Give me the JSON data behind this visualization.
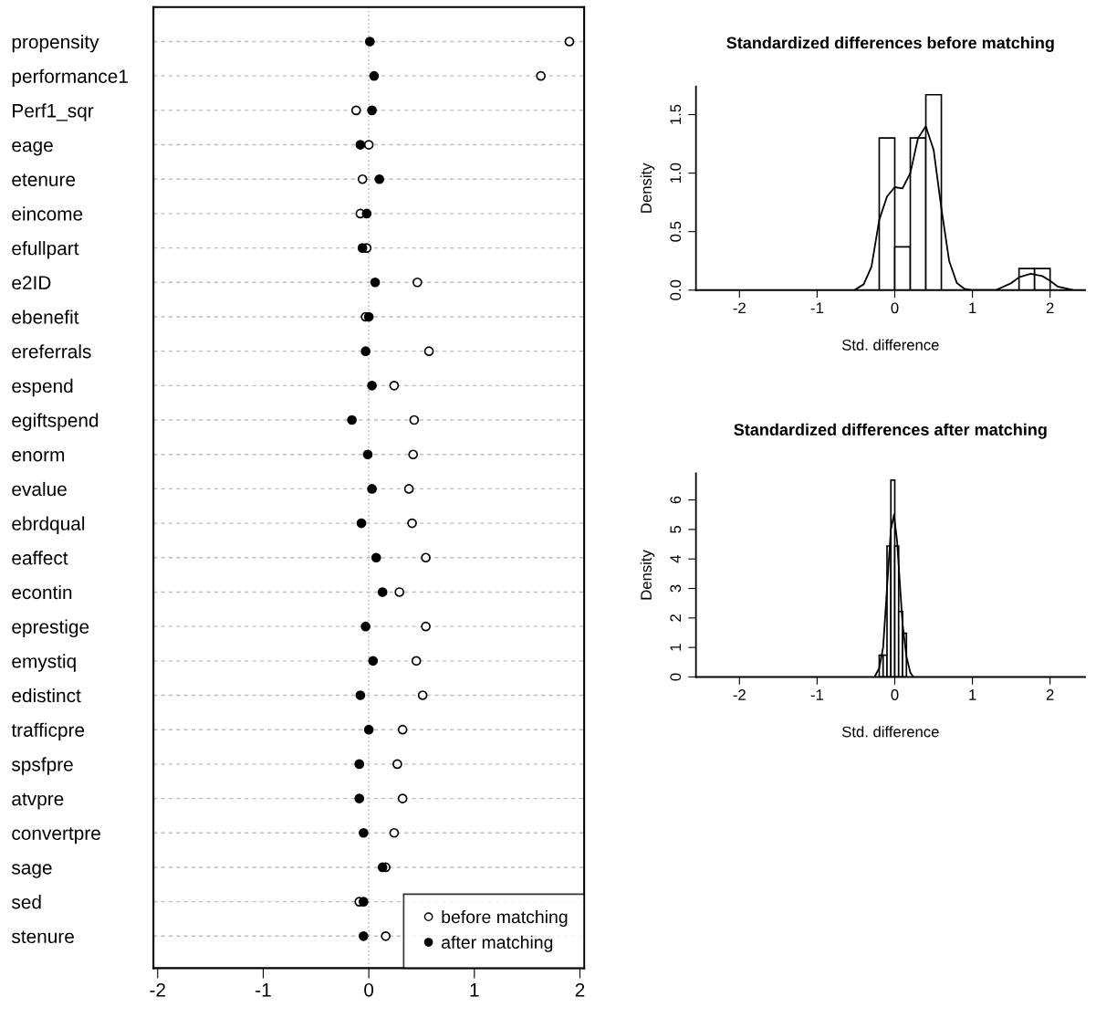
{
  "chart_data": [
    {
      "type": "scatter",
      "orientation": "horizontal",
      "categories": [
        "propensity",
        "performance1",
        "Perf1_sqr",
        "eage",
        "etenure",
        "eincome",
        "efullpart",
        "e2ID",
        "ebenefit",
        "ereferrals",
        "espend",
        "egiftspend",
        "enorm",
        "evalue",
        "ebrdqual",
        "eaffect",
        "econtin",
        "eprestige",
        "emystiq",
        "edistinct",
        "trafficpre",
        "spsfpre",
        "atvpre",
        "convertpre",
        "sage",
        "sed",
        "stenure"
      ],
      "series": [
        {
          "name": "before matching",
          "color": "#ffffff",
          "values": [
            1.9,
            1.63,
            -0.12,
            0.0,
            -0.06,
            -0.08,
            -0.02,
            0.46,
            -0.03,
            0.57,
            0.24,
            0.43,
            0.42,
            0.38,
            0.41,
            0.54,
            0.29,
            0.54,
            0.45,
            0.51,
            0.32,
            0.27,
            0.32,
            0.24,
            0.16,
            -0.09,
            0.16
          ]
        },
        {
          "name": "after matching",
          "color": "#000000",
          "values": [
            0.01,
            0.05,
            0.03,
            -0.08,
            0.1,
            -0.02,
            -0.06,
            0.06,
            0.0,
            -0.03,
            0.03,
            -0.16,
            -0.01,
            0.03,
            -0.07,
            0.07,
            0.13,
            -0.03,
            0.04,
            -0.08,
            0.0,
            -0.09,
            -0.09,
            -0.05,
            0.13,
            -0.05,
            -0.05
          ]
        }
      ],
      "marker": "circle",
      "xlim": [
        -2.04,
        2.04
      ],
      "xticks": [
        -2,
        -1,
        0,
        1,
        2
      ],
      "grid": "y",
      "ref_lines": [
        {
          "axis": "x",
          "value": 0,
          "color": "#bebebe",
          "line_style": "dotted"
        }
      ],
      "legend": "bottom right"
    },
    {
      "type": "histogram",
      "title": "Standardized differences before matching",
      "xlabel": "Std. difference",
      "ylabel": "Density",
      "series": [
        {
          "type": "histogram",
          "color": "#000000",
          "bins": [
            -0.2,
            0.0,
            0.2,
            0.4,
            0.6,
            0.8,
            1.0,
            1.2,
            1.4,
            1.6,
            1.8,
            2.0
          ],
          "values": [
            1.3,
            0.37,
            1.3,
            1.67,
            0,
            0,
            0,
            0,
            0,
            0.185,
            0.185
          ]
        },
        {
          "type": "line",
          "color": "#000000",
          "x": [
            -0.52,
            -0.4,
            -0.3,
            -0.2,
            -0.1,
            0.0,
            0.1,
            0.2,
            0.3,
            0.4,
            0.5,
            0.6,
            0.7,
            0.8,
            0.9,
            1.0,
            1.3,
            1.5,
            1.6,
            1.75,
            1.9,
            2.0,
            2.1,
            2.3
          ],
          "values": [
            0,
            0.05,
            0.2,
            0.6,
            0.8,
            0.88,
            0.87,
            1.0,
            1.3,
            1.4,
            1.2,
            0.7,
            0.25,
            0.06,
            0.01,
            0,
            0,
            0.06,
            0.11,
            0.14,
            0.12,
            0.08,
            0.03,
            0
          ]
        }
      ],
      "xlim": [
        -2.56,
        2.45
      ],
      "xticks": [
        -2,
        -1,
        0,
        1,
        2
      ],
      "ylim": [
        0,
        1.74
      ],
      "yticks": [
        {
          "value": 0,
          "label": "0.0"
        },
        0.5,
        {
          "value": 1,
          "label": "1.0"
        },
        1.5
      ],
      "grid": false
    },
    {
      "type": "histogram",
      "title": "Standardized differences after matching",
      "xlabel": "Std. difference",
      "ylabel": "Density",
      "series": [
        {
          "type": "histogram",
          "color": "#000000",
          "bins": [
            -0.2,
            -0.15,
            -0.1,
            -0.05,
            0.0,
            0.05,
            0.1,
            0.15
          ],
          "values": [
            0.74,
            0.74,
            4.44,
            6.67,
            4.44,
            2.22,
            1.48
          ]
        },
        {
          "type": "line",
          "color": "#000000",
          "x": [
            -0.26,
            -0.2,
            -0.15,
            -0.1,
            -0.05,
            -0.01,
            0.03,
            0.07,
            0.1,
            0.15,
            0.2,
            0.24
          ],
          "values": [
            0,
            0.3,
            1.0,
            3.0,
            5.0,
            5.5,
            4.6,
            3.0,
            1.8,
            0.7,
            0.15,
            0
          ]
        }
      ],
      "xlim": [
        -2.56,
        2.45
      ],
      "xticks": [
        -2,
        -1,
        0,
        1,
        2
      ],
      "ylim": [
        0,
        6.9
      ],
      "yticks": [
        0,
        1,
        2,
        3,
        4,
        5,
        6
      ],
      "grid": false
    }
  ]
}
